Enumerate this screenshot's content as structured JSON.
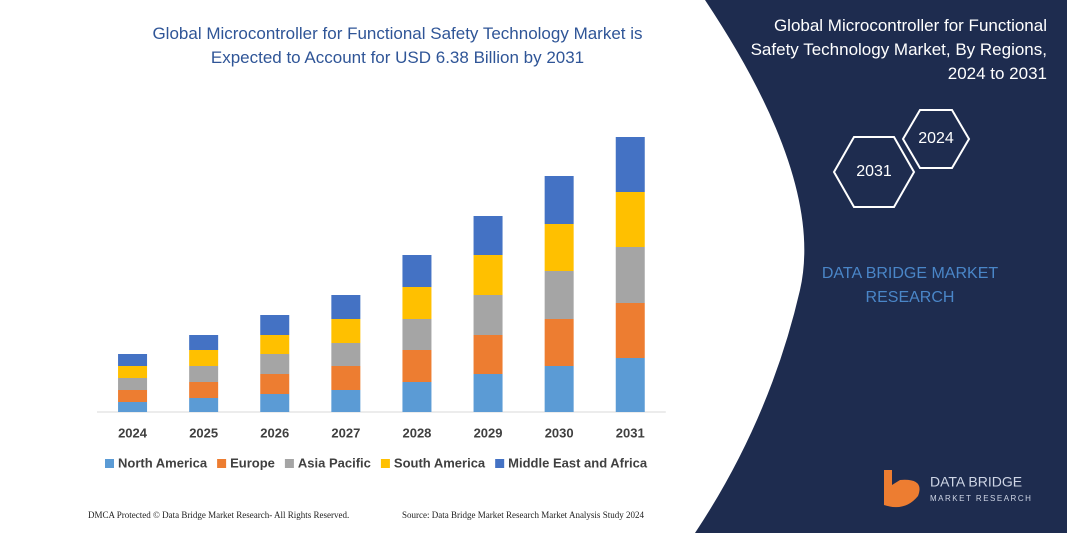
{
  "chart_data": {
    "type": "bar",
    "stacked": true,
    "title": "Global Microcontroller for Functional Safety Technology Market is Expected to Account for USD 6.38 Billion by 2031",
    "categories": [
      "2024",
      "2025",
      "2026",
      "2027",
      "2028",
      "2029",
      "2030",
      "2031"
    ],
    "series": [
      {
        "name": "North America",
        "color": "#5b9bd5",
        "values": [
          10,
          14,
          18,
          22,
          30,
          38,
          46,
          54
        ]
      },
      {
        "name": "Europe",
        "color": "#ed7d31",
        "values": [
          12,
          16,
          20,
          24,
          32,
          39,
          47,
          55
        ]
      },
      {
        "name": "Asia Pacific",
        "color": "#a5a5a5",
        "values": [
          12,
          16,
          20,
          23,
          31,
          40,
          48,
          56
        ]
      },
      {
        "name": "South America",
        "color": "#ffc000",
        "values": [
          12,
          16,
          19,
          24,
          32,
          40,
          47,
          55
        ]
      },
      {
        "name": "Middle East and Africa",
        "color": "#4472c4",
        "values": [
          12,
          15,
          20,
          24,
          32,
          39,
          48,
          55
        ]
      }
    ]
  },
  "panel": {
    "title": "Global Microcontroller for Functional Safety Technology Market, By Regions, 2024 to 2031",
    "hex_start": "2024",
    "hex_end": "2031",
    "brand": "DATA BRIDGE MARKET RESEARCH"
  },
  "logo": {
    "name": "DATA BRIDGE",
    "tagline": "MARKET RESEARCH"
  },
  "footer": {
    "left": "DMCA Protected © Data Bridge Market Research-  All Rights Reserved.",
    "right": "Source: Data Bridge Market Research  Market Analysis Study 2024"
  }
}
